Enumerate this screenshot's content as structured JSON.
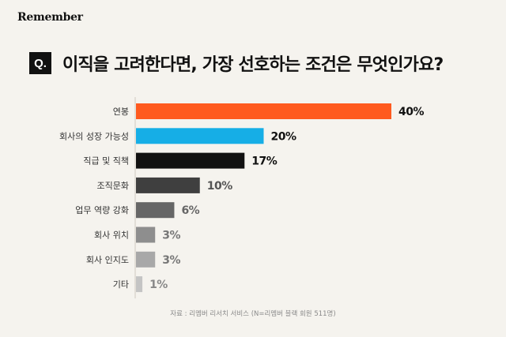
{
  "brand": "Remember",
  "header": {
    "badge": "Q.",
    "title": "이직을 고려한다면, 가장 선호하는 조건은 무엇인가요?"
  },
  "source": "자료 : 리멤버 리서치 서비스 (N=리멤버 블랙 회원 511명)",
  "chart_data": {
    "type": "bar",
    "orientation": "horizontal",
    "categories": [
      "연봉",
      "회사의 성장 가능성",
      "직급 및 직책",
      "조직문화",
      "업무 역량 강화",
      "회사 위치",
      "회사 인지도",
      "기타"
    ],
    "values": [
      40,
      20,
      17,
      10,
      6,
      3,
      3,
      1
    ],
    "value_labels": [
      "40%",
      "20%",
      "17%",
      "10%",
      "6%",
      "3%",
      "3%",
      "1%"
    ],
    "unit": "%",
    "xlim": [
      0,
      40
    ],
    "grid": false,
    "bar_colors": [
      "#ff5a1f",
      "#16aee6",
      "#111111",
      "#3f3f3f",
      "#666666",
      "#8e8e8e",
      "#a8a8a8",
      "#c4c4c4"
    ],
    "label_colors": [
      "#111111",
      "#111111",
      "#111111",
      "#555555",
      "#666666",
      "#777777",
      "#777777",
      "#888888"
    ]
  }
}
